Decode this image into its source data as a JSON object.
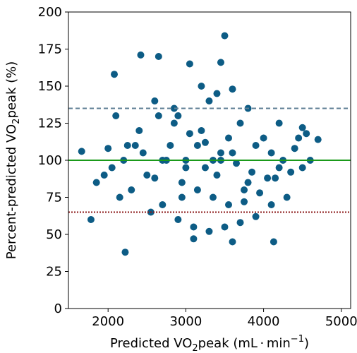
{
  "chart_data": {
    "type": "scatter",
    "xlabel": {
      "prefix": "Predicted VO",
      "sub": "2",
      "mid": "peak (mL · min",
      "sup": "−1",
      "suffix": ")"
    },
    "ylabel": {
      "prefix": "Percent-predicted VO",
      "sub": "2",
      "suffix": "peak (%)"
    },
    "xlim": [
      1490,
      5120
    ],
    "ylim": [
      0,
      200
    ],
    "xticks": [
      2000,
      3000,
      4000,
      5000
    ],
    "yticks": [
      0,
      25,
      50,
      75,
      100,
      125,
      150,
      175,
      200
    ],
    "color": "#0d5c85",
    "hlines": [
      {
        "y": 135,
        "color": "#5f7f95",
        "style": "dashed"
      },
      {
        "y": 100,
        "color": "#1a9a1a",
        "style": "solid"
      },
      {
        "y": 65,
        "color": "#8b1a1a",
        "style": "dotted"
      }
    ],
    "x": [
      3500,
      2420,
      2650,
      3050,
      3450,
      2220,
      4130,
      1780,
      4700,
      1660,
      2080,
      3600,
      3100,
      2100,
      2400,
      2600,
      2800,
      3000,
      3200,
      3400,
      3600,
      3800,
      4000,
      4200,
      4400,
      2300,
      2500,
      2700,
      2900,
      3100,
      3300,
      3500,
      3700,
      3900,
      4100,
      4300,
      4500,
      2200,
      2450,
      2750,
      2950,
      3150,
      3350,
      3550,
      3750,
      3950,
      4150,
      4350,
      2050,
      2350,
      2650,
      2850,
      3050,
      3250,
      3450,
      3650,
      3850,
      4050,
      4250,
      4450,
      2150,
      2550,
      2900,
      3300,
      3700,
      4100,
      4500,
      2250,
      2600,
      3000,
      3400,
      3800,
      4200,
      1850,
      1950,
      2000,
      4600,
      4550,
      2700,
      3200,
      3600,
      3900,
      3350,
      3250,
      3150,
      3450,
      3550,
      2850,
      3750,
      2950
    ],
    "y": [
      184,
      171,
      170,
      165,
      166,
      38,
      45,
      60,
      114,
      106,
      158,
      45,
      47,
      130,
      120,
      140,
      110,
      95,
      150,
      145,
      148,
      135,
      115,
      125,
      108,
      80,
      90,
      70,
      60,
      55,
      52,
      55,
      58,
      62,
      70,
      75,
      95,
      100,
      105,
      100,
      85,
      80,
      75,
      70,
      72,
      78,
      88,
      92,
      95,
      110,
      130,
      125,
      118,
      112,
      105,
      98,
      92,
      88,
      100,
      115,
      75,
      65,
      130,
      140,
      125,
      105,
      122,
      110,
      88,
      100,
      90,
      85,
      95,
      85,
      90,
      108,
      100,
      118,
      100,
      120,
      105,
      110,
      100,
      95,
      110,
      100,
      115,
      135,
      80,
      75
    ]
  }
}
